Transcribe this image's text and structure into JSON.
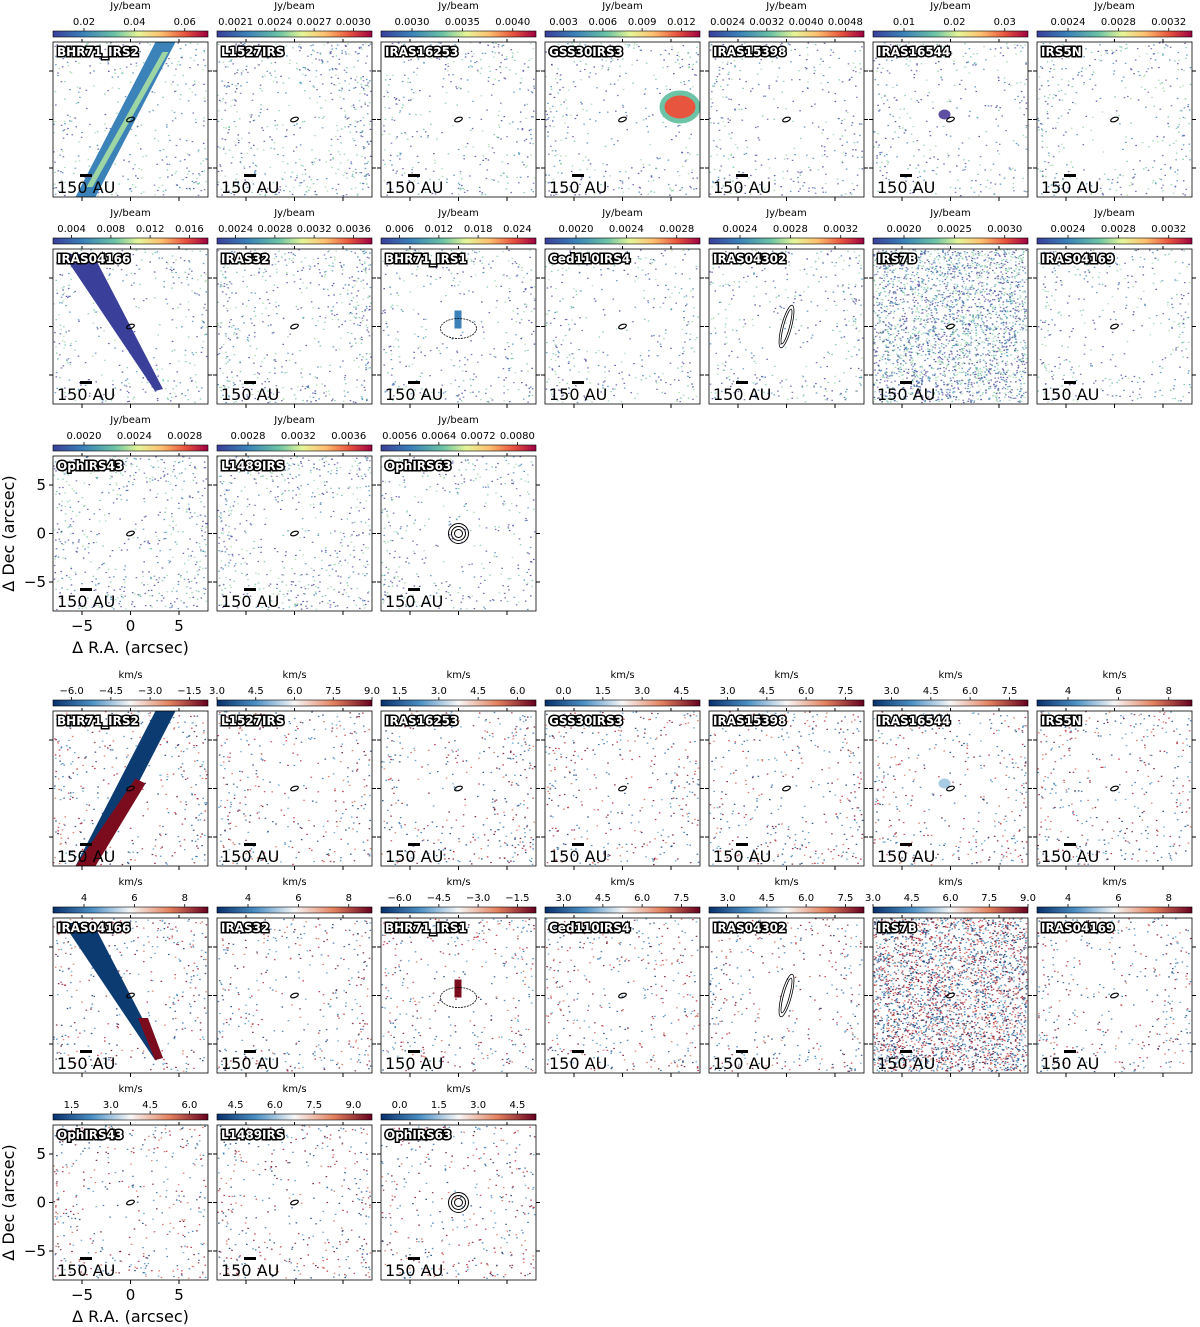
{
  "maps": [
    {
      "unit": "Jy/beam",
      "scale_bar": "150 AU",
      "xlabel": "Δ R.A. (arcsec)",
      "ylabel": "Δ Dec (arcsec)",
      "xticks": [
        "−5",
        "0",
        "5"
      ],
      "yticks": [
        "5",
        "0",
        "−5"
      ],
      "panels": [
        {
          "name": "BHR71_IRS2",
          "ticks": [
            "0.02",
            "0.04",
            "0.06"
          ]
        },
        {
          "name": "L1527IRS",
          "ticks": [
            "0.0021",
            "0.0024",
            "0.0027",
            "0.0030"
          ]
        },
        {
          "name": "IRAS16253",
          "ticks": [
            "0.0030",
            "0.0035",
            "0.0040"
          ]
        },
        {
          "name": "GSS30IRS3",
          "ticks": [
            "0.003",
            "0.006",
            "0.009",
            "0.012"
          ]
        },
        {
          "name": "IRAS15398",
          "ticks": [
            "0.0024",
            "0.0032",
            "0.0040",
            "0.0048"
          ]
        },
        {
          "name": "IRAS16544",
          "ticks": [
            "0.01",
            "0.02",
            "0.03"
          ]
        },
        {
          "name": "IRS5N",
          "ticks": [
            "0.0024",
            "0.0028",
            "0.0032"
          ]
        },
        {
          "name": "IRAS04166",
          "ticks": [
            "0.004",
            "0.008",
            "0.012",
            "0.016"
          ]
        },
        {
          "name": "IRAS32",
          "ticks": [
            "0.0024",
            "0.0028",
            "0.0032",
            "0.0036"
          ]
        },
        {
          "name": "BHR71_IRS1",
          "ticks": [
            "0.006",
            "0.012",
            "0.018",
            "0.024"
          ]
        },
        {
          "name": "Ced110IRS4",
          "ticks": [
            "0.0020",
            "0.0024",
            "0.0028"
          ]
        },
        {
          "name": "IRAS04302",
          "ticks": [
            "0.0024",
            "0.0028",
            "0.0032"
          ]
        },
        {
          "name": "IRS7B",
          "ticks": [
            "0.0020",
            "0.0025",
            "0.0030"
          ]
        },
        {
          "name": "IRAS04169",
          "ticks": [
            "0.0024",
            "0.0028",
            "0.0032"
          ]
        },
        {
          "name": "OphIRS43",
          "ticks": [
            "0.0020",
            "0.0024",
            "0.0028"
          ]
        },
        {
          "name": "L1489IRS",
          "ticks": [
            "0.0028",
            "0.0032",
            "0.0036"
          ]
        },
        {
          "name": "OphIRS63",
          "ticks": [
            "0.0056",
            "0.0064",
            "0.0072",
            "0.0080"
          ]
        }
      ]
    },
    {
      "unit": "km/s",
      "scale_bar": "150 AU",
      "xlabel": "Δ R.A. (arcsec)",
      "ylabel": "Δ Dec (arcsec)",
      "xticks": [
        "−5",
        "0",
        "5"
      ],
      "yticks": [
        "5",
        "0",
        "−5"
      ],
      "panels": [
        {
          "name": "BHR71_IRS2",
          "ticks": [
            "−6.0",
            "−4.5",
            "−3.0",
            "−1.5"
          ]
        },
        {
          "name": "L1527IRS",
          "ticks": [
            "3.0",
            "4.5",
            "6.0",
            "7.5",
            "9.0"
          ]
        },
        {
          "name": "IRAS16253",
          "ticks": [
            "1.5",
            "3.0",
            "4.5",
            "6.0"
          ]
        },
        {
          "name": "GSS30IRS3",
          "ticks": [
            "0.0",
            "1.5",
            "3.0",
            "4.5"
          ]
        },
        {
          "name": "IRAS15398",
          "ticks": [
            "3.0",
            "4.5",
            "6.0",
            "7.5"
          ]
        },
        {
          "name": "IRAS16544",
          "ticks": [
            "3.0",
            "4.5",
            "6.0",
            "7.5"
          ]
        },
        {
          "name": "IRS5N",
          "ticks": [
            "4",
            "6",
            "8"
          ]
        },
        {
          "name": "IRAS04166",
          "ticks": [
            "4",
            "6",
            "8"
          ]
        },
        {
          "name": "IRAS32",
          "ticks": [
            "4",
            "6",
            "8"
          ]
        },
        {
          "name": "BHR71_IRS1",
          "ticks": [
            "−6.0",
            "−4.5",
            "−3.0",
            "−1.5"
          ]
        },
        {
          "name": "Ced110IRS4",
          "ticks": [
            "3.0",
            "4.5",
            "6.0",
            "7.5"
          ]
        },
        {
          "name": "IRAS04302",
          "ticks": [
            "3.0",
            "4.5",
            "6.0",
            "7.5"
          ]
        },
        {
          "name": "IRS7B",
          "ticks": [
            "3.0",
            "4.5",
            "6.0",
            "7.5",
            "9.0"
          ]
        },
        {
          "name": "IRAS04169",
          "ticks": [
            "4",
            "6",
            "8"
          ]
        },
        {
          "name": "OphIRS43",
          "ticks": [
            "1.5",
            "3.0",
            "4.5",
            "6.0"
          ]
        },
        {
          "name": "L1489IRS",
          "ticks": [
            "4.5",
            "6.0",
            "7.5",
            "9.0"
          ]
        },
        {
          "name": "OphIRS63",
          "ticks": [
            "0.0",
            "1.5",
            "3.0",
            "4.5"
          ]
        }
      ]
    }
  ]
}
